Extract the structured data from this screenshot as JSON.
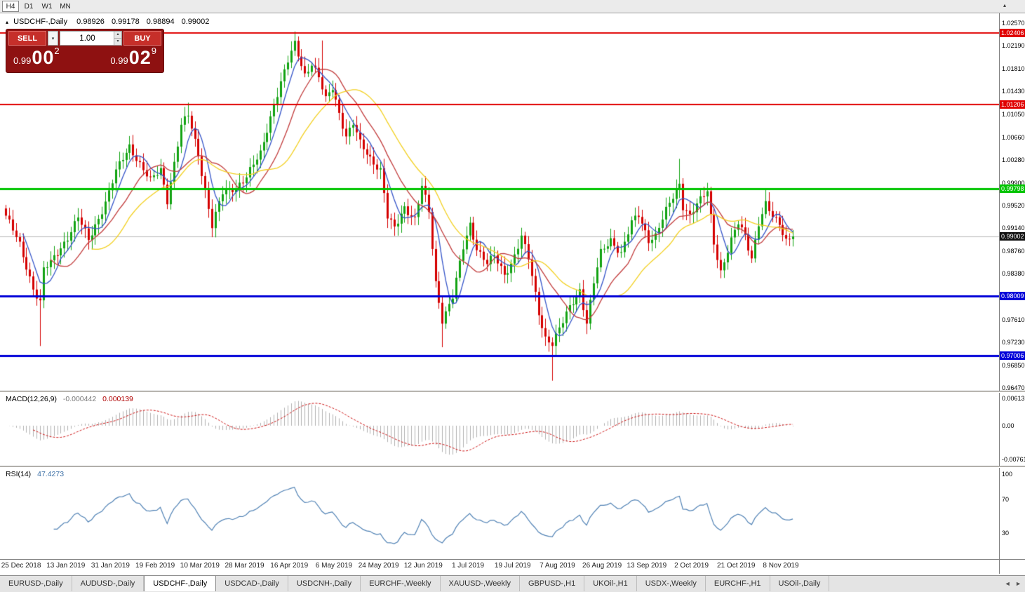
{
  "icons": {
    "collapse": "▴",
    "dropdown": "▾",
    "spin_up": "▴",
    "spin_down": "▾",
    "tab_left": "◄",
    "tab_right": "►",
    "auto_scroll": "▴"
  },
  "toolbar": {
    "timeframes": [
      {
        "label": "H4",
        "active": true
      },
      {
        "label": "D1",
        "active": false
      },
      {
        "label": "W1",
        "active": false
      },
      {
        "label": "MN",
        "active": false
      }
    ]
  },
  "chart_header": {
    "symbol": "USDCHF-,Daily",
    "open": "0.98926",
    "high": "0.99178",
    "low": "0.98894",
    "close": "0.99002"
  },
  "trade_panel": {
    "sell_label": "SELL",
    "buy_label": "BUY",
    "volume": "1.00",
    "sell_price": {
      "base": "0.99",
      "big": "00",
      "sup": "2"
    },
    "buy_price": {
      "base": "0.99",
      "big": "02",
      "sup": "9"
    }
  },
  "indicators": {
    "macd": {
      "label": "MACD(12,26,9)",
      "main_value": "-0.000442",
      "signal_value": "0.000139"
    },
    "rsi": {
      "label": "RSI(14)",
      "value": "47.4273"
    }
  },
  "tabs": {
    "items": [
      "EURUSD-,Daily",
      "AUDUSD-,Daily",
      "USDCHF-,Daily",
      "USDCAD-,Daily",
      "USDCNH-,Daily",
      "EURCHF-,Weekly",
      "XAUUSD-,Weekly",
      "GBPUSD-,H1",
      "UKOil-,H1",
      "USDX-,Weekly",
      "EURCHF-,H1",
      "USOil-,Daily"
    ],
    "active_index": 2
  },
  "chart_data": {
    "type": "candlestick",
    "symbol": "USDCHF",
    "timeframe": "Daily",
    "price_axis": {
      "min": 0.96423,
      "max": 1.02734,
      "ticks": [
        "1.02570",
        "1.02190",
        "1.01810",
        "1.01430",
        "1.01050",
        "1.00660",
        "1.00280",
        "0.99900",
        "0.99520",
        "0.99140",
        "0.98760",
        "0.98380",
        "0.97990",
        "0.97610",
        "0.97230",
        "0.96850",
        "0.96470"
      ]
    },
    "h_lines": [
      {
        "price": 1.02406,
        "label": "1.02406",
        "color": "#e00000",
        "width": 2
      },
      {
        "price": 1.01206,
        "label": "1.01206",
        "color": "#e00000",
        "width": 2
      },
      {
        "price": 0.99798,
        "label": "0.99798",
        "color": "#00c400",
        "width": 3
      },
      {
        "price": 0.98009,
        "label": "0.98009",
        "color": "#0000d8",
        "width": 3
      },
      {
        "price": 0.97006,
        "label": "0.97006",
        "color": "#0000d8",
        "width": 3
      }
    ],
    "current_price": {
      "price": 0.99002,
      "label": "0.99002",
      "color": "#111111"
    },
    "candles": {
      "count": 230,
      "close_anchors": [
        [
          0,
          0.9935
        ],
        [
          4,
          0.9885
        ],
        [
          8,
          0.9815
        ],
        [
          10,
          0.979
        ],
        [
          11,
          0.9845
        ],
        [
          13,
          0.9855
        ],
        [
          18,
          0.99
        ],
        [
          21,
          0.9932
        ],
        [
          24,
          0.9893
        ],
        [
          29,
          0.9958
        ],
        [
          32,
          1.0008
        ],
        [
          36,
          1.0052
        ],
        [
          39,
          1.0022
        ],
        [
          42,
          0.9992
        ],
        [
          45,
          1.0012
        ],
        [
          47,
          0.9962
        ],
        [
          51,
          1.0085
        ],
        [
          53,
          1.0102
        ],
        [
          56,
          1.0038
        ],
        [
          60,
          0.9918
        ],
        [
          63,
          0.9972
        ],
        [
          67,
          0.9984
        ],
        [
          70,
          1.0
        ],
        [
          74,
          1.0038
        ],
        [
          78,
          1.0122
        ],
        [
          82,
          1.0192
        ],
        [
          84,
          1.0222
        ],
        [
          87,
          1.0172
        ],
        [
          89,
          1.019
        ],
        [
          91,
          1.0165
        ],
        [
          93,
          1.0128
        ],
        [
          95,
          1.015
        ],
        [
          97,
          1.0108
        ],
        [
          99,
          1.0068
        ],
        [
          101,
          1.0088
        ],
        [
          103,
          1.0055
        ],
        [
          106,
          1.0032
        ],
        [
          109,
          1.0012
        ],
        [
          111,
          0.9932
        ],
        [
          113,
          0.9912
        ],
        [
          116,
          0.995
        ],
        [
          119,
          0.993
        ],
        [
          121,
          0.9984
        ],
        [
          123,
          0.994
        ],
        [
          125,
          0.9822
        ],
        [
          127,
          0.9762
        ],
        [
          130,
          0.98
        ],
        [
          133,
          0.988
        ],
        [
          135,
          0.992
        ],
        [
          137,
          0.9882
        ],
        [
          140,
          0.9856
        ],
        [
          142,
          0.9866
        ],
        [
          145,
          0.9836
        ],
        [
          147,
          0.9856
        ],
        [
          150,
          0.99
        ],
        [
          152,
          0.9862
        ],
        [
          155,
          0.9772
        ],
        [
          157,
          0.9732
        ],
        [
          159,
          0.9722
        ],
        [
          162,
          0.9756
        ],
        [
          164,
          0.9782
        ],
        [
          167,
          0.9812
        ],
        [
          169,
          0.9756
        ],
        [
          171,
          0.9822
        ],
        [
          173,
          0.9872
        ],
        [
          176,
          0.9896
        ],
        [
          179,
          0.9872
        ],
        [
          182,
          0.9922
        ],
        [
          184,
          0.9936
        ],
        [
          187,
          0.9896
        ],
        [
          189,
          0.9902
        ],
        [
          192,
          0.9942
        ],
        [
          195,
          0.9978
        ],
        [
          196,
          0.999
        ],
        [
          197,
          0.9952
        ],
        [
          199,
          0.9936
        ],
        [
          201,
          0.9952
        ],
        [
          204,
          0.9976
        ],
        [
          206,
          0.9892
        ],
        [
          208,
          0.9842
        ],
        [
          211,
          0.9892
        ],
        [
          213,
          0.9922
        ],
        [
          215,
          0.9902
        ],
        [
          217,
          0.9866
        ],
        [
          219,
          0.9922
        ],
        [
          221,
          0.9952
        ],
        [
          223,
          0.9932
        ],
        [
          225,
          0.9922
        ],
        [
          227,
          0.9896
        ],
        [
          229,
          0.99002
        ]
      ],
      "wick_overrides": [
        {
          "i": 10,
          "low": 0.9717
        },
        {
          "i": 53,
          "high": 1.0124
        },
        {
          "i": 84,
          "high": 1.0243
        },
        {
          "i": 92,
          "high": 1.0228
        },
        {
          "i": 127,
          "low": 0.9715
        },
        {
          "i": 159,
          "low": 0.9659
        },
        {
          "i": 169,
          "low": 0.9737
        },
        {
          "i": 196,
          "high": 1.003
        },
        {
          "i": 204,
          "high": 0.9984
        },
        {
          "i": 221,
          "high": 0.9981
        }
      ]
    },
    "moving_averages": [
      {
        "period": 6,
        "color": "#3353c8"
      },
      {
        "period": 14,
        "color": "#c13a3a"
      },
      {
        "period": 26,
        "color": "#f2cf1d"
      }
    ],
    "macd": {
      "params": "12,26,9",
      "main": -0.000442,
      "signal": 0.000139,
      "axis": {
        "min": -0.009,
        "max": 0.0074,
        "ticks": [
          "0.00613",
          "0.00",
          "-0.00761"
        ]
      }
    },
    "rsi": {
      "period": 14,
      "value": 47.4273,
      "axis_ticks": [
        "100",
        "70",
        "30"
      ]
    },
    "x_axis": {
      "dates": [
        "25 Dec 2018",
        "13 Jan 2019",
        "31 Jan 2019",
        "19 Feb 2019",
        "10 Mar 2019",
        "28 Mar 2019",
        "16 Apr 2019",
        "6 May 2019",
        "24 May 2019",
        "12 Jun 2019",
        "1 Jul 2019",
        "19 Jul 2019",
        "7 Aug 2019",
        "26 Aug 2019",
        "13 Sep 2019",
        "2 Oct 2019",
        "21 Oct 2019",
        "8 Nov 2019"
      ],
      "first_candle_index": 4.5,
      "step_candles": 13
    },
    "colors": {
      "bull": "#12a312",
      "bear": "#d40000",
      "macd_hist": "#b0b0b0",
      "macd_signal": "#cc1111",
      "rsi_line": "#4f81b4",
      "current_price_line": "#bdbdbd"
    }
  }
}
